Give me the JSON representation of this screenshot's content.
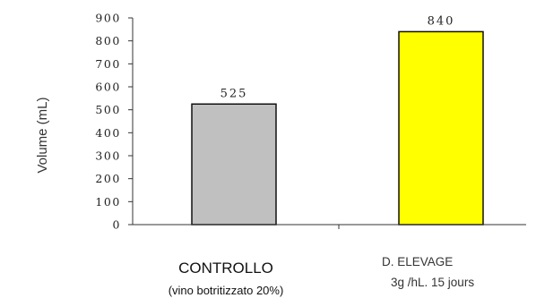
{
  "chart_data": {
    "type": "bar",
    "title": "",
    "xlabel": "",
    "ylabel": "Volume (mL)",
    "ylim": [
      0,
      900
    ],
    "yticks": [
      0,
      100,
      200,
      300,
      400,
      500,
      600,
      700,
      800,
      900
    ],
    "grid": false,
    "legend": "none",
    "categories": [
      {
        "line1": "CONTROLLO",
        "line2": "(vino botritizzato 20%)"
      },
      {
        "line1": "D. ELEVAGE",
        "line2": "3g /hL. 15 jours"
      }
    ],
    "values": [
      525,
      840
    ],
    "value_labels": [
      "525",
      "840"
    ],
    "colors": [
      "#c0c0c0",
      "#ffff00"
    ]
  }
}
